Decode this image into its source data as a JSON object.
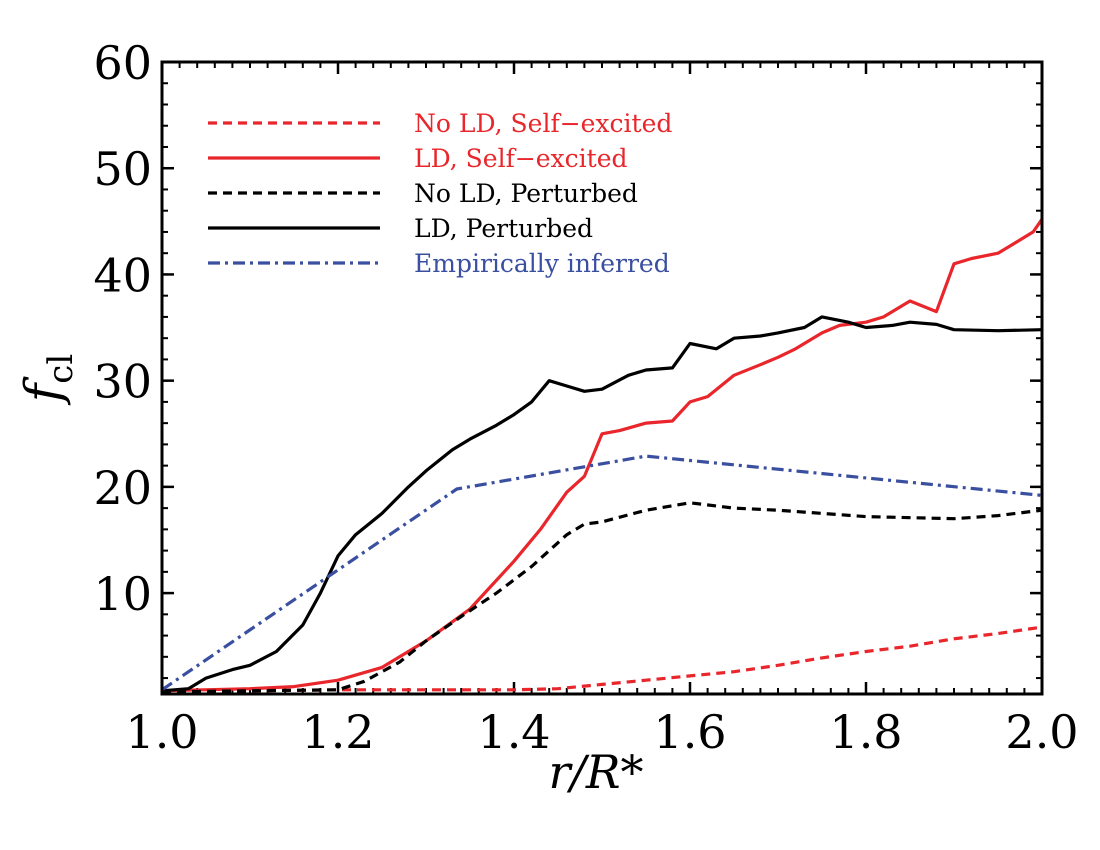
{
  "chart_data": {
    "type": "line",
    "xlabel": "r/R*",
    "ylabel": "f_cl",
    "ylabel_main": "f",
    "ylabel_sub": "cl",
    "xlim": [
      1.0,
      2.0
    ],
    "ylim": [
      0.5,
      60
    ],
    "x_ticks": [
      "1.0",
      "1.2",
      "1.4",
      "1.6",
      "1.8",
      "2.0"
    ],
    "y_ticks": [
      "10",
      "20",
      "30",
      "40",
      "50",
      "60"
    ],
    "grid": false,
    "legend_position": "top-left",
    "series": [
      {
        "name": "No LD, Self−excited",
        "color": "#e8262b",
        "style": "dashed",
        "x": [
          1.0,
          1.1,
          1.2,
          1.3,
          1.4,
          1.45,
          1.5,
          1.55,
          1.6,
          1.65,
          1.7,
          1.75,
          1.8,
          1.85,
          1.9,
          1.95,
          2.0
        ],
        "y": [
          0.7,
          0.8,
          0.9,
          0.9,
          0.9,
          1.0,
          1.4,
          1.8,
          2.2,
          2.6,
          3.2,
          3.9,
          4.5,
          5.0,
          5.7,
          6.2,
          6.8
        ]
      },
      {
        "name": "LD, Self−excited",
        "color": "#e8262b",
        "style": "solid",
        "x": [
          1.0,
          1.1,
          1.15,
          1.2,
          1.25,
          1.3,
          1.35,
          1.4,
          1.43,
          1.46,
          1.48,
          1.5,
          1.52,
          1.55,
          1.58,
          1.6,
          1.62,
          1.65,
          1.68,
          1.7,
          1.72,
          1.75,
          1.77,
          1.8,
          1.82,
          1.85,
          1.88,
          1.9,
          1.92,
          1.95,
          1.97,
          1.99,
          2.0
        ],
        "y": [
          0.8,
          1.0,
          1.2,
          1.8,
          3.0,
          5.5,
          8.5,
          13.0,
          16.0,
          19.5,
          21.0,
          25.0,
          25.3,
          26.0,
          26.2,
          28.0,
          28.5,
          30.5,
          31.5,
          32.2,
          33.0,
          34.5,
          35.2,
          35.5,
          36.0,
          37.5,
          36.5,
          41.0,
          41.5,
          42.0,
          43.0,
          44.0,
          45.2
        ]
      },
      {
        "name": "No LD, Perturbed",
        "color": "#000000",
        "style": "dashed",
        "x": [
          1.0,
          1.1,
          1.2,
          1.23,
          1.27,
          1.3,
          1.34,
          1.38,
          1.42,
          1.46,
          1.48,
          1.5,
          1.55,
          1.6,
          1.65,
          1.7,
          1.8,
          1.9,
          1.95,
          2.0
        ],
        "y": [
          0.7,
          0.8,
          0.9,
          1.7,
          3.5,
          5.5,
          7.8,
          10.0,
          12.5,
          15.5,
          16.5,
          16.7,
          17.8,
          18.5,
          18.0,
          17.8,
          17.2,
          17.0,
          17.3,
          17.8
        ]
      },
      {
        "name": "LD, Perturbed",
        "color": "#000000",
        "style": "solid",
        "x": [
          1.0,
          1.03,
          1.05,
          1.08,
          1.1,
          1.13,
          1.16,
          1.18,
          1.2,
          1.22,
          1.25,
          1.28,
          1.3,
          1.33,
          1.35,
          1.38,
          1.4,
          1.42,
          1.44,
          1.46,
          1.48,
          1.5,
          1.53,
          1.55,
          1.58,
          1.6,
          1.63,
          1.65,
          1.68,
          1.7,
          1.73,
          1.75,
          1.78,
          1.8,
          1.83,
          1.85,
          1.88,
          1.9,
          1.95,
          2.0
        ],
        "y": [
          0.8,
          1.0,
          2.0,
          2.8,
          3.2,
          4.5,
          7.0,
          10.0,
          13.5,
          15.5,
          17.5,
          20.0,
          21.5,
          23.5,
          24.5,
          25.8,
          26.8,
          28.0,
          30.0,
          29.5,
          29.0,
          29.2,
          30.5,
          31.0,
          31.2,
          33.5,
          33.0,
          34.0,
          34.2,
          34.5,
          35.0,
          36.0,
          35.5,
          35.0,
          35.2,
          35.5,
          35.3,
          34.8,
          34.7,
          34.8
        ]
      },
      {
        "name": "Empirically inferred",
        "color": "#3a4fa0",
        "style": "dashdot",
        "x": [
          1.0,
          1.335,
          1.55,
          2.0
        ],
        "y": [
          0.9,
          19.8,
          22.9,
          19.2
        ]
      }
    ]
  }
}
